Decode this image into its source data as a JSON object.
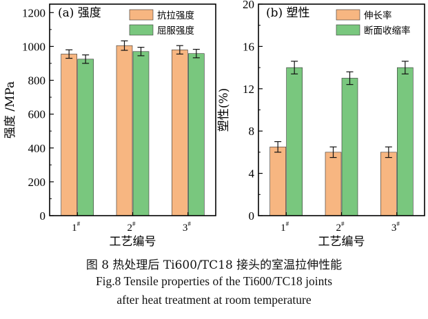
{
  "colors": {
    "orange": "#f7b681",
    "green": "#79c77e",
    "axis": "#000000"
  },
  "chart_data": [
    {
      "type": "bar",
      "panel_label": "(a) 强度",
      "categories": [
        "1#",
        "2#",
        "3#"
      ],
      "series": [
        {
          "name": "抗拉强度",
          "values": [
            955,
            1005,
            980
          ],
          "errors": [
            25,
            28,
            25
          ]
        },
        {
          "name": "屈服强度",
          "values": [
            925,
            970,
            958
          ],
          "errors": [
            25,
            25,
            25
          ]
        }
      ],
      "xlabel": "工艺编号",
      "ylabel": "强度 /MPa",
      "ylim": [
        0,
        1250
      ],
      "yticks": [
        0,
        200,
        400,
        600,
        800,
        1000,
        1200
      ],
      "legend": "top-right",
      "grid": false
    },
    {
      "type": "bar",
      "panel_label": "(b) 塑性",
      "categories": [
        "1#",
        "2#",
        "3#"
      ],
      "series": [
        {
          "name": "伸长率",
          "values": [
            6.5,
            6.0,
            6.0
          ],
          "errors": [
            0.5,
            0.5,
            0.5
          ]
        },
        {
          "name": "断面收缩率",
          "values": [
            14.0,
            13.0,
            14.0
          ],
          "errors": [
            0.6,
            0.6,
            0.6
          ]
        }
      ],
      "xlabel": "工艺编号",
      "ylabel": "塑性(%)",
      "ylim": [
        0,
        20
      ],
      "yticks": [
        0,
        4,
        8,
        12,
        16,
        20
      ],
      "legend": "top-right",
      "grid": false
    }
  ],
  "caption": {
    "cn": "图 8  热处理后 Ti600/TC18 接头的室温拉伸性能",
    "en_line1": "Fig.8  Tensile properties of the Ti600/TC18 joints",
    "en_line2": "after heat treatment at room temperature"
  }
}
